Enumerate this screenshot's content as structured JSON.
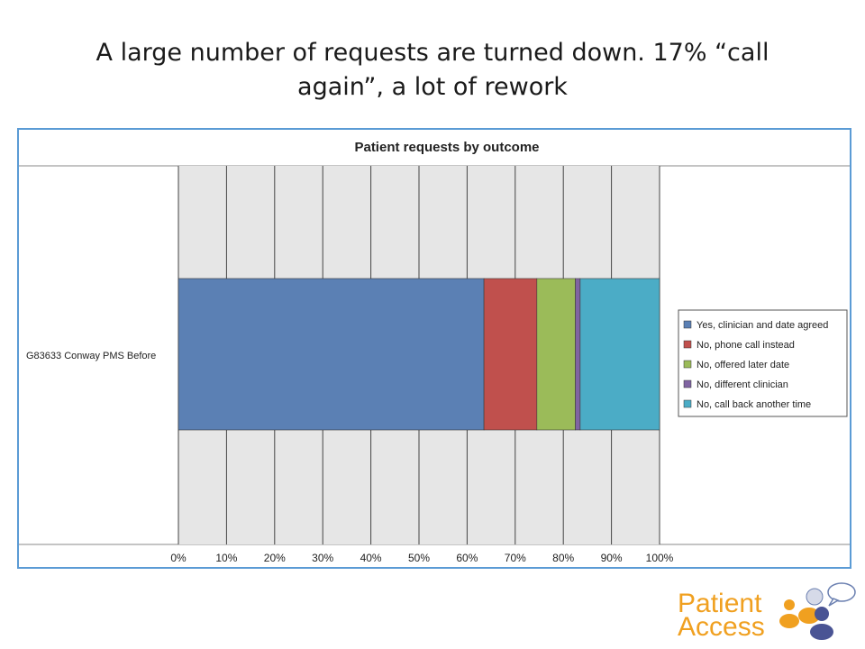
{
  "slide": {
    "title_line1": "A large number of requests are turned down.  17% “call",
    "title_line2": "again”, a lot of rework"
  },
  "chart_data": {
    "type": "bar",
    "orientation": "horizontal",
    "stacked": "percent",
    "title": "Patient requests by outcome",
    "categories": [
      "G83633 Conway PMS   Before"
    ],
    "series": [
      {
        "name": "Yes, clinician and date agreed",
        "values": [
          63.5
        ],
        "color": "#5b80b4"
      },
      {
        "name": "No, phone call instead",
        "values": [
          11
        ],
        "color": "#c0504d"
      },
      {
        "name": "No, offered later date",
        "values": [
          8
        ],
        "color": "#9bbb59"
      },
      {
        "name": "No, different clinician",
        "values": [
          1
        ],
        "color": "#8064a2"
      },
      {
        "name": "No, call back another time",
        "values": [
          16.5
        ],
        "color": "#4bacc6"
      }
    ],
    "xlim": [
      0,
      100
    ],
    "xticks": [
      "0%",
      "10%",
      "20%",
      "30%",
      "40%",
      "50%",
      "60%",
      "70%",
      "80%",
      "90%",
      "100%"
    ],
    "grid": true,
    "legend_position": "right"
  },
  "logo": {
    "line1": "Patient",
    "line2": "Access"
  }
}
